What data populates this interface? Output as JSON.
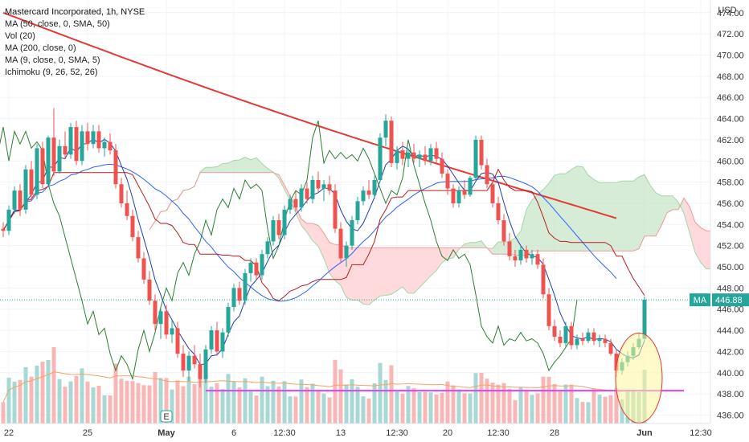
{
  "chart_data": {
    "type": "candlestick",
    "title": "Mastercard Incorporated, 1h, NYSE",
    "currency": "USD",
    "indicators": [
      "MA (50, close, 0, SMA, 50)",
      "Vol (20)",
      "MA (200, close, 0)",
      "MA (9, close, 0, SMA, 5)",
      "Ichimoku (9, 26, 52, 26)"
    ],
    "y_ticks": [
      436,
      438,
      440,
      442,
      444,
      446,
      448,
      450,
      452,
      454,
      456,
      458,
      460,
      462,
      464,
      466,
      468,
      470,
      472,
      474
    ],
    "y_tick_labels": [
      "436.00",
      "438.00",
      "440.00",
      "442.00",
      "444.00",
      "446.00",
      "448.00",
      "450.00",
      "452.00",
      "454.00",
      "456.00",
      "458.00",
      "460.00",
      "462.00",
      "464.00",
      "466.00",
      "468.00",
      "470.00",
      "472.00",
      "474.00"
    ],
    "ylim": [
      435.2,
      475.2
    ],
    "x_labels": [
      {
        "label": "22",
        "bar": 1
      },
      {
        "label": "25",
        "bar": 15
      },
      {
        "label": "May",
        "bar": 29
      },
      {
        "label": "6",
        "bar": 41
      },
      {
        "label": "12:30",
        "bar": 50
      },
      {
        "label": "13",
        "bar": 60
      },
      {
        "label": "12:30",
        "bar": 70
      },
      {
        "label": "20",
        "bar": 79
      },
      {
        "label": "12:30",
        "bar": 88
      },
      {
        "label": "28",
        "bar": 98
      },
      {
        "label": "Jun",
        "bar": 114
      },
      {
        "label": "12:30",
        "bar": 124
      }
    ],
    "last_price": 446.88,
    "last_price_tag": "MA",
    "event_marker": {
      "label": "E",
      "bar": 29
    },
    "support_line": {
      "value": 438.3,
      "start_bar": 36,
      "end_bar": 121
    },
    "highlight_circle": {
      "center_bar": 113,
      "center_value": 439.5,
      "note": "ellipse around final bars"
    },
    "ohlc": [
      [
        453.6,
        454.2,
        452.8,
        453.4
      ],
      [
        453.4,
        455.8,
        453.0,
        455.4
      ],
      [
        455.4,
        457.6,
        455.0,
        457.2
      ],
      [
        457.2,
        457.8,
        454.8,
        455.4
      ],
      [
        455.4,
        459.6,
        455.0,
        459.2
      ],
      [
        459.2,
        460.0,
        456.2,
        456.8
      ],
      [
        456.8,
        461.6,
        456.4,
        461.2
      ],
      [
        461.2,
        461.8,
        457.4,
        457.8
      ],
      [
        457.8,
        462.4,
        457.6,
        462.2
      ],
      [
        462.2,
        465.0,
        458.6,
        459.0
      ],
      [
        459.0,
        462.0,
        458.8,
        461.4
      ],
      [
        461.4,
        462.8,
        460.2,
        460.6
      ],
      [
        460.6,
        463.6,
        460.2,
        463.2
      ],
      [
        463.2,
        463.8,
        459.6,
        460.0
      ],
      [
        460.0,
        463.4,
        459.6,
        462.8
      ],
      [
        462.8,
        463.6,
        461.0,
        461.6
      ],
      [
        461.6,
        463.4,
        461.2,
        462.8
      ],
      [
        462.8,
        463.4,
        460.8,
        461.2
      ],
      [
        461.2,
        462.2,
        460.4,
        461.8
      ],
      [
        461.8,
        462.6,
        460.6,
        461.0
      ],
      [
        461.0,
        461.6,
        457.4,
        457.8
      ],
      [
        457.8,
        458.4,
        455.6,
        456.0
      ],
      [
        456.0,
        457.2,
        454.4,
        454.8
      ],
      [
        454.8,
        455.4,
        452.4,
        452.8
      ],
      [
        452.8,
        453.4,
        450.4,
        450.8
      ],
      [
        450.8,
        451.4,
        448.4,
        448.8
      ],
      [
        448.8,
        449.6,
        446.4,
        446.8
      ],
      [
        446.8,
        447.4,
        444.0,
        444.6
      ],
      [
        444.6,
        446.2,
        443.2,
        445.8
      ],
      [
        445.8,
        446.4,
        443.2,
        443.6
      ],
      [
        443.6,
        445.0,
        442.8,
        444.2
      ],
      [
        444.2,
        444.8,
        441.4,
        441.8
      ],
      [
        441.8,
        442.6,
        439.6,
        440.2
      ],
      [
        440.2,
        442.0,
        439.2,
        441.6
      ],
      [
        441.6,
        442.6,
        440.4,
        440.8
      ],
      [
        440.8,
        441.8,
        438.6,
        439.4
      ],
      [
        439.4,
        442.6,
        439.0,
        442.2
      ],
      [
        442.2,
        444.4,
        441.8,
        444.0
      ],
      [
        444.0,
        444.8,
        441.6,
        442.0
      ],
      [
        442.0,
        444.2,
        441.4,
        443.8
      ],
      [
        443.8,
        446.6,
        443.4,
        446.2
      ],
      [
        446.2,
        448.4,
        445.8,
        448.0
      ],
      [
        448.0,
        448.6,
        446.4,
        446.8
      ],
      [
        446.8,
        449.8,
        446.4,
        449.4
      ],
      [
        449.4,
        450.8,
        448.6,
        450.4
      ],
      [
        450.4,
        450.8,
        448.8,
        449.2
      ],
      [
        449.2,
        451.6,
        448.8,
        451.2
      ],
      [
        451.2,
        452.8,
        450.8,
        452.4
      ],
      [
        452.4,
        454.8,
        452.0,
        454.4
      ],
      [
        454.4,
        455.0,
        452.6,
        453.0
      ],
      [
        453.0,
        455.8,
        452.6,
        455.4
      ],
      [
        455.4,
        456.8,
        455.0,
        456.4
      ],
      [
        456.4,
        457.2,
        455.2,
        455.6
      ],
      [
        455.6,
        457.8,
        455.2,
        457.4
      ],
      [
        457.4,
        458.0,
        456.0,
        456.4
      ],
      [
        456.4,
        458.6,
        456.0,
        458.2
      ],
      [
        458.2,
        459.0,
        457.0,
        457.4
      ],
      [
        457.4,
        458.2,
        456.2,
        457.8
      ],
      [
        457.8,
        458.6,
        456.8,
        457.2
      ],
      [
        457.2,
        457.8,
        453.2,
        453.6
      ],
      [
        453.6,
        454.2,
        450.4,
        450.8
      ],
      [
        450.8,
        452.4,
        450.0,
        452.0
      ],
      [
        452.0,
        454.8,
        451.6,
        454.4
      ],
      [
        454.4,
        456.6,
        454.0,
        456.2
      ],
      [
        456.2,
        457.6,
        455.8,
        457.2
      ],
      [
        457.2,
        458.2,
        456.4,
        456.8
      ],
      [
        456.8,
        458.6,
        456.4,
        458.2
      ],
      [
        458.2,
        462.6,
        458.0,
        462.2
      ],
      [
        462.2,
        464.4,
        461.4,
        463.8
      ],
      [
        463.8,
        464.2,
        459.4,
        459.8
      ],
      [
        459.8,
        461.4,
        459.2,
        461.0
      ],
      [
        461.0,
        461.8,
        459.6,
        460.2
      ],
      [
        460.2,
        461.2,
        459.4,
        460.8
      ],
      [
        460.8,
        461.6,
        459.8,
        460.2
      ],
      [
        460.2,
        461.0,
        459.4,
        460.6
      ],
      [
        460.6,
        461.4,
        459.6,
        460.0
      ],
      [
        460.0,
        461.6,
        459.6,
        461.2
      ],
      [
        461.2,
        461.8,
        459.8,
        460.2
      ],
      [
        460.2,
        460.8,
        458.4,
        458.8
      ],
      [
        458.8,
        459.2,
        456.8,
        457.4
      ],
      [
        457.4,
        457.8,
        455.6,
        456.0
      ],
      [
        456.0,
        457.6,
        455.6,
        457.2
      ],
      [
        457.2,
        458.2,
        456.4,
        456.8
      ],
      [
        456.8,
        458.6,
        456.6,
        458.4
      ],
      [
        458.4,
        462.4,
        458.0,
        462.0
      ],
      [
        462.0,
        462.4,
        459.2,
        459.6
      ],
      [
        459.6,
        460.2,
        457.4,
        457.8
      ],
      [
        457.8,
        458.2,
        455.6,
        456.0
      ],
      [
        456.0,
        456.6,
        454.0,
        454.4
      ],
      [
        454.4,
        455.0,
        452.0,
        452.4
      ],
      [
        452.4,
        453.2,
        450.6,
        451.0
      ],
      [
        451.0,
        451.6,
        450.0,
        450.6
      ],
      [
        450.6,
        452.0,
        450.2,
        451.6
      ],
      [
        451.6,
        452.0,
        450.4,
        450.8
      ],
      [
        450.8,
        451.6,
        450.2,
        451.2
      ],
      [
        451.2,
        451.6,
        449.8,
        450.2
      ],
      [
        450.2,
        450.8,
        447.0,
        447.4
      ],
      [
        447.4,
        448.0,
        444.0,
        444.4
      ],
      [
        444.4,
        445.0,
        443.0,
        443.4
      ],
      [
        443.4,
        444.0,
        442.4,
        442.8
      ],
      [
        442.8,
        444.8,
        442.4,
        444.4
      ],
      [
        444.4,
        444.8,
        442.2,
        442.6
      ],
      [
        442.6,
        443.6,
        442.2,
        443.2
      ],
      [
        443.2,
        443.8,
        442.6,
        443.0
      ],
      [
        443.0,
        444.2,
        442.8,
        443.8
      ],
      [
        443.8,
        444.2,
        442.6,
        443.0
      ],
      [
        443.0,
        443.6,
        442.4,
        443.2
      ],
      [
        443.2,
        443.6,
        442.4,
        442.8
      ],
      [
        442.8,
        443.2,
        441.6,
        441.8
      ],
      [
        441.8,
        442.2,
        439.6,
        440.2
      ],
      [
        440.2,
        441.4,
        439.8,
        441.0
      ],
      [
        441.0,
        442.0,
        440.6,
        441.6
      ],
      [
        441.6,
        442.8,
        441.2,
        442.4
      ],
      [
        442.4,
        443.8,
        442.2,
        443.2
      ],
      [
        443.2,
        447.2,
        443.0,
        446.9
      ]
    ],
    "series_colors": {
      "up": "#26a69a",
      "down": "#ef5350",
      "ma_50": "#2962ff",
      "ma_200": "#e53935",
      "ma_9": "#1e40af",
      "ichimoku_conversion": "#b71c1c",
      "ichimoku_lagging": "#2e7d32",
      "cloud_bull": "#c8e6c9",
      "cloud_bear": "#ffcdd2",
      "support_line": "#e040fb",
      "highlight": "#fff59d",
      "highlight_stroke": "#e53935",
      "volume_ma": "#f4a261"
    }
  }
}
